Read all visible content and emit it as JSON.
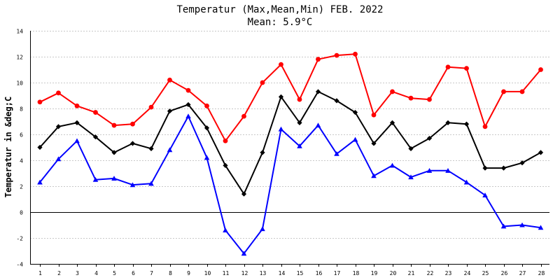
{
  "chart_data": {
    "type": "line",
    "title": "Temperatur (Max,Mean,Min) FEB. 2022",
    "subtitle": "Mean: 5.9°C",
    "xlabel": "",
    "ylabel": "Temperatur in &deg;C",
    "x": [
      1,
      2,
      3,
      4,
      5,
      6,
      7,
      8,
      9,
      10,
      11,
      12,
      13,
      14,
      15,
      16,
      17,
      18,
      19,
      20,
      21,
      22,
      23,
      24,
      25,
      26,
      27,
      28
    ],
    "ylim": [
      -4,
      14
    ],
    "yticks": [
      -4,
      -2,
      0,
      2,
      4,
      6,
      8,
      10,
      12,
      14
    ],
    "grid": true,
    "legend": "none",
    "series": [
      {
        "key": "max",
        "color": "#ff0000",
        "marker": "circle",
        "values": [
          8.5,
          9.2,
          8.2,
          7.7,
          6.7,
          6.8,
          8.1,
          10.2,
          9.4,
          8.2,
          5.5,
          7.4,
          10.0,
          11.4,
          8.7,
          11.8,
          12.1,
          12.2,
          7.5,
          9.3,
          8.8,
          8.7,
          11.2,
          11.1,
          6.6,
          9.3,
          9.3,
          11.0
        ]
      },
      {
        "key": "mean",
        "color": "#000000",
        "marker": "diamond",
        "values": [
          5.0,
          6.6,
          6.9,
          5.8,
          4.6,
          5.3,
          4.9,
          7.8,
          8.3,
          6.5,
          3.6,
          1.4,
          4.6,
          8.9,
          6.9,
          9.3,
          8.6,
          7.7,
          5.3,
          6.9,
          4.9,
          5.7,
          6.9,
          6.8,
          3.4,
          3.4,
          3.8,
          4.6
        ]
      },
      {
        "key": "min",
        "color": "#0000ff",
        "marker": "triangle",
        "values": [
          2.3,
          4.1,
          5.5,
          2.5,
          2.6,
          2.1,
          2.2,
          4.8,
          7.4,
          4.2,
          -1.4,
          -3.2,
          -1.3,
          6.4,
          5.1,
          6.7,
          4.5,
          5.6,
          2.8,
          3.6,
          2.7,
          3.2,
          3.2,
          2.3,
          1.3,
          -1.1,
          -1.0,
          -1.2
        ]
      }
    ]
  }
}
